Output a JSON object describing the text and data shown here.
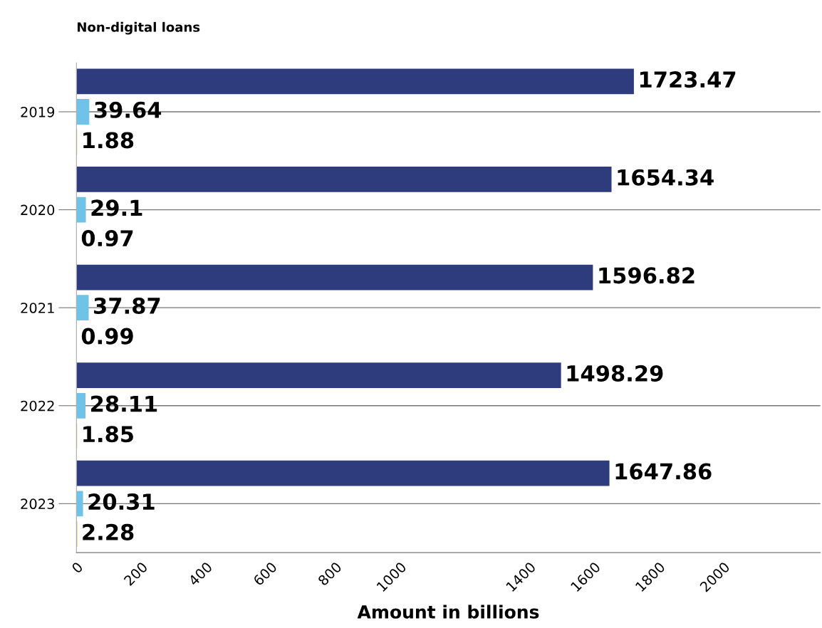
{
  "chart_data": {
    "type": "bar",
    "orientation": "horizontal",
    "title": "Non-digital loans",
    "xlabel": "Amount in billions",
    "categories": [
      "2019",
      "2020",
      "2021",
      "2022",
      "2023"
    ],
    "series": [
      {
        "color": "#2e3b7c",
        "values": [
          1723.47,
          1654.34,
          1596.82,
          1498.29,
          1647.86
        ]
      },
      {
        "color": "#6ec3e6",
        "values": [
          39.64,
          29.1,
          37.87,
          28.11,
          20.31
        ]
      },
      {
        "color": "#f08c00",
        "values": [
          1.88,
          0.97,
          0.99,
          1.85,
          2.28
        ]
      }
    ],
    "xlim": [
      0,
      2300
    ],
    "xticks": [
      0,
      200,
      400,
      600,
      800,
      1000,
      1400,
      1600,
      1800,
      2000
    ],
    "grid": "y",
    "legend": false,
    "data_labels": true
  }
}
